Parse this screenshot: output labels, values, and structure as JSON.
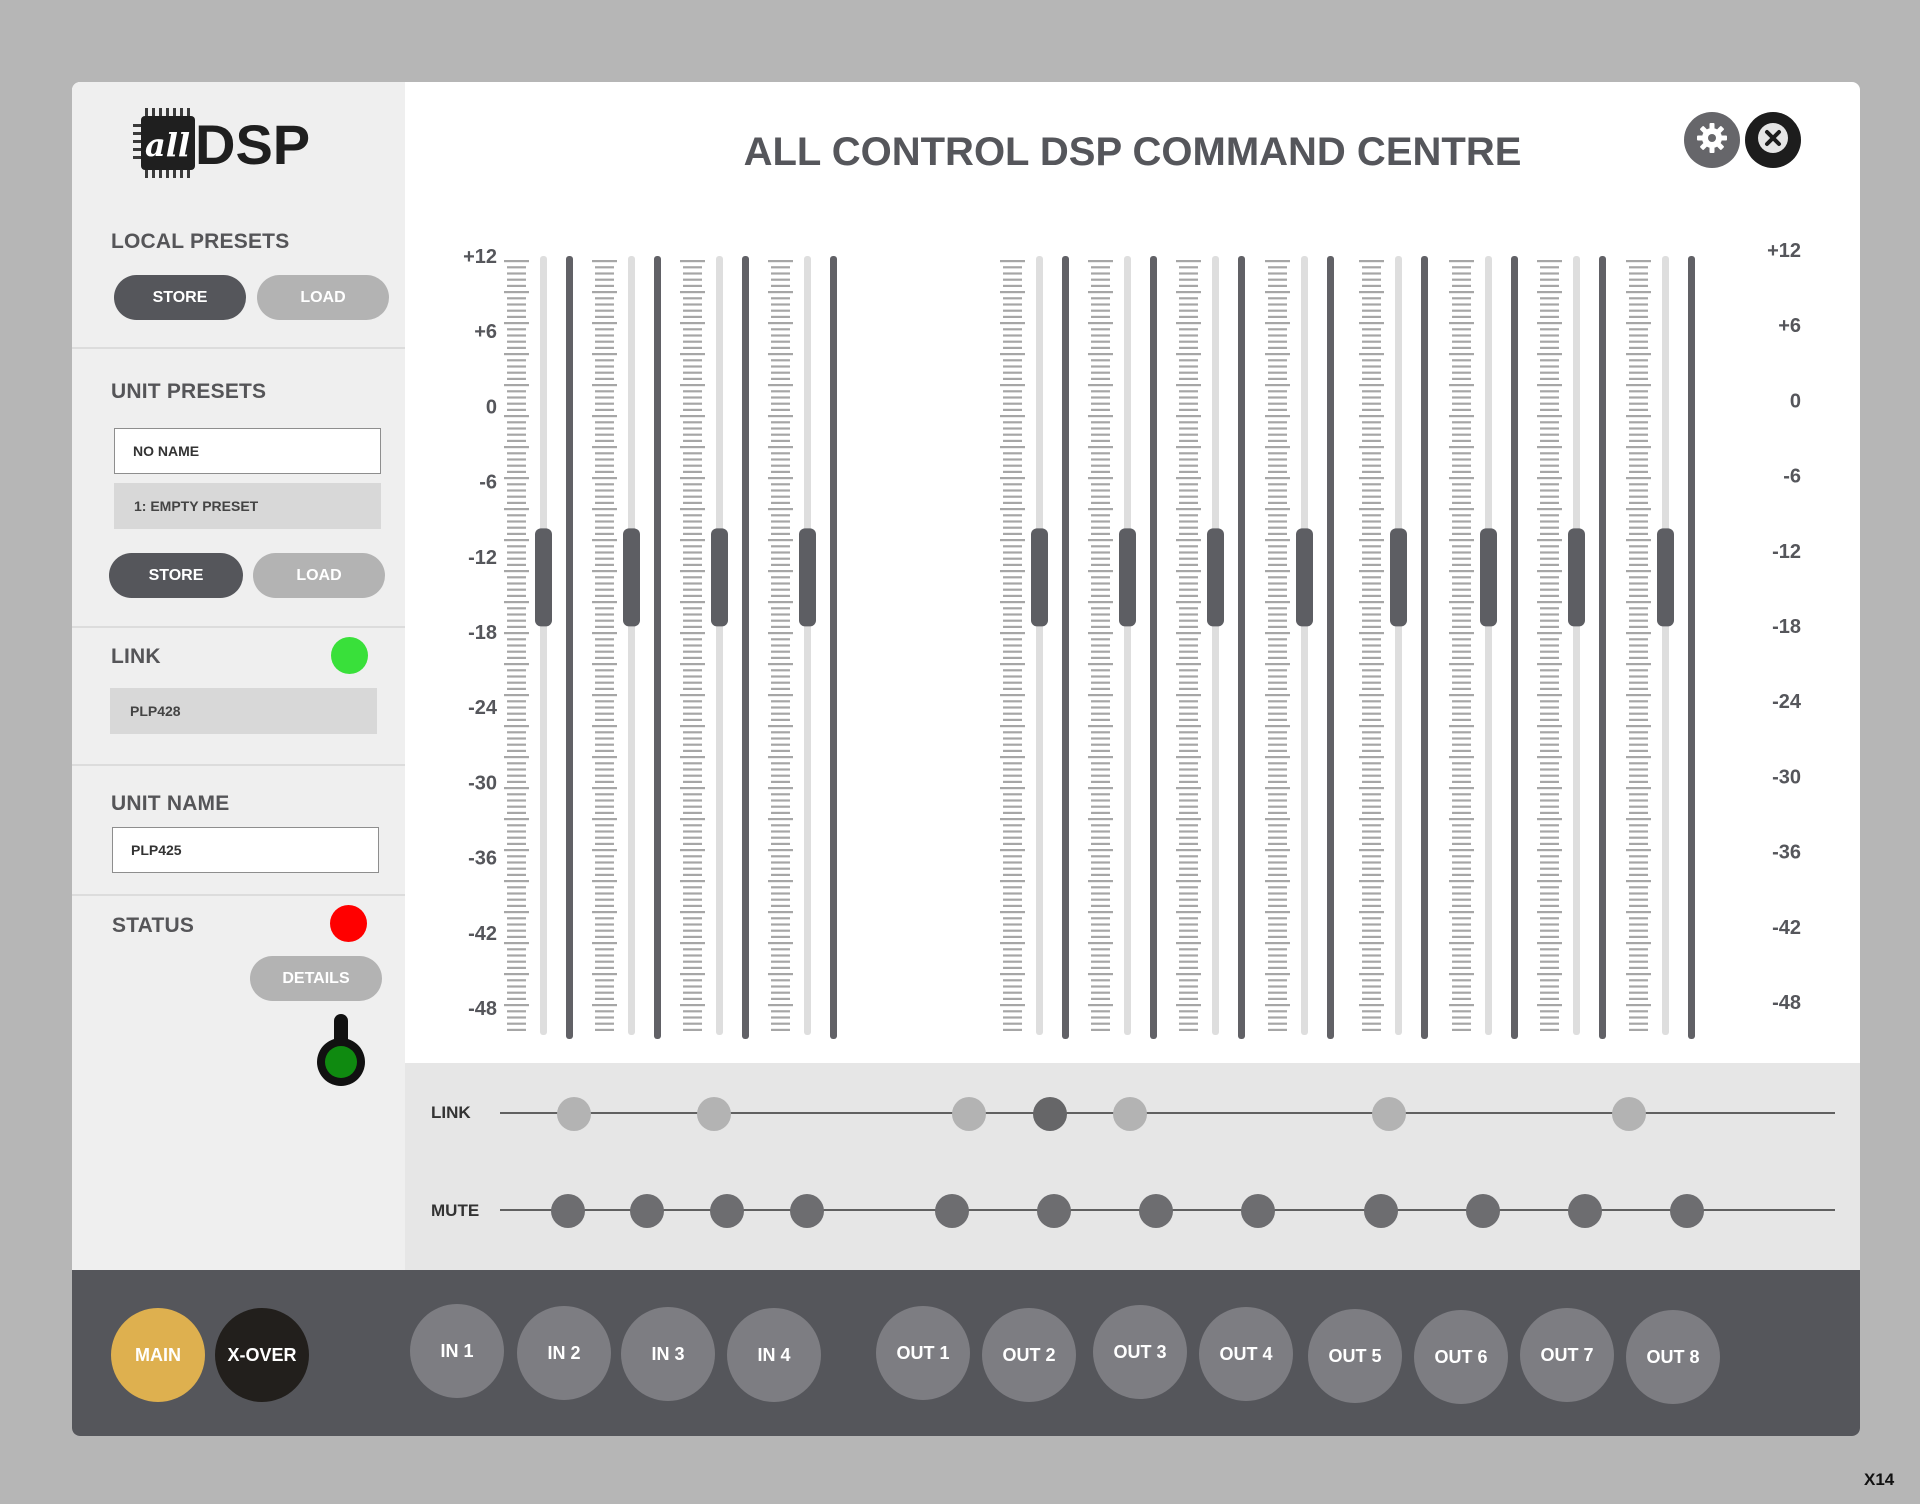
{
  "app_title": "ALL CONTROL DSP COMMAND CENTRE",
  "logo": {
    "script_text": "all",
    "text": "DSP"
  },
  "local_presets": {
    "label": "LOCAL PRESETS",
    "store": "STORE",
    "load": "LOAD"
  },
  "unit_presets": {
    "label": "UNIT PRESETS",
    "name_value": "NO NAME",
    "preset_value": "1: EMPTY PRESET",
    "store": "STORE",
    "load": "LOAD"
  },
  "link": {
    "label": "LINK",
    "status_color": "#39e03a",
    "value": "PLP428"
  },
  "unit_name": {
    "label": "UNIT NAME",
    "value": "PLP425"
  },
  "status": {
    "label": "STATUS",
    "status_color": "#ff0000",
    "details": "DETAILS"
  },
  "header_icons": {
    "settings": "gear-icon",
    "close": "close-icon"
  },
  "meter_scale": [
    "+12",
    "+6",
    "0",
    "-6",
    "-12",
    "-18",
    "-24",
    "-30",
    "-36",
    "-42",
    "-48"
  ],
  "channels": [
    {
      "name": "IN 1",
      "level": 0.6
    },
    {
      "name": "IN 2",
      "level": 0.6
    },
    {
      "name": "IN 3",
      "level": 0.6
    },
    {
      "name": "IN 4",
      "level": 0.6
    },
    {
      "name": "OUT 1",
      "level": 0.6
    },
    {
      "name": "OUT 2",
      "level": 0.6
    },
    {
      "name": "OUT 3",
      "level": 0.6
    },
    {
      "name": "OUT 4",
      "level": 0.6
    },
    {
      "name": "OUT 5",
      "level": 0.6
    },
    {
      "name": "OUT 6",
      "level": 0.6
    },
    {
      "name": "OUT 7",
      "level": 0.6
    },
    {
      "name": "OUT 8",
      "level": 0.6
    }
  ],
  "link_row": {
    "label": "LINK",
    "active": [
      false,
      false,
      false,
      true,
      false,
      false,
      false
    ]
  },
  "mute_row": {
    "label": "MUTE"
  },
  "nav": {
    "main": "MAIN",
    "xover": "X-OVER",
    "main_color": "#deb04f",
    "xover_color": "#221f1c",
    "channel_color": "#7d7d82",
    "channels": [
      "IN 1",
      "IN 2",
      "IN 3",
      "IN 4",
      "OUT 1",
      "OUT 2",
      "OUT 3",
      "OUT 4",
      "OUT 5",
      "OUT 6",
      "OUT 7",
      "OUT 8"
    ]
  },
  "corner_tag": "X14"
}
